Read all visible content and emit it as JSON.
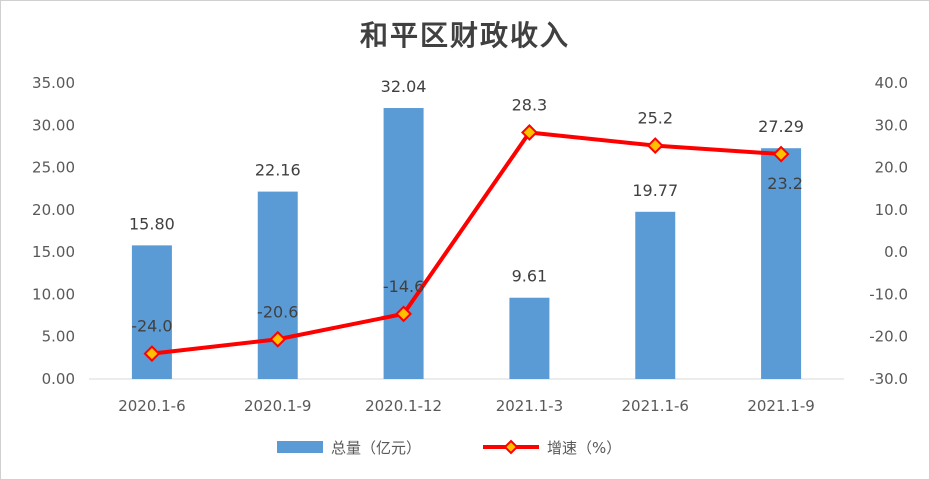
{
  "chart_data": {
    "type": "bar+line",
    "title": "和平区财政收入",
    "categories": [
      "2020.1-6",
      "2020.1-9",
      "2020.1-12",
      "2021.1-3",
      "2021.1-6",
      "2021.1-9"
    ],
    "series": [
      {
        "name": "总量（亿元）",
        "type": "bar",
        "axis": "left",
        "values": [
          15.8,
          22.16,
          32.04,
          9.61,
          19.77,
          27.29
        ],
        "labels": [
          "15.80",
          "22.16",
          "32.04",
          "9.61",
          "19.77",
          "27.29"
        ],
        "color": "#5b9bd5"
      },
      {
        "name": "增速（%）",
        "type": "line",
        "axis": "right",
        "values": [
          -24.0,
          -20.6,
          -14.6,
          28.3,
          25.2,
          23.2
        ],
        "labels": [
          "-24.0",
          "-20.6",
          "-14.6",
          "28.3",
          "25.2",
          "23.2"
        ],
        "color": "#ff0000",
        "marker_color": "#ffc000"
      }
    ],
    "y_left": {
      "min": 0,
      "max": 35,
      "ticks": [
        "0.00",
        "5.00",
        "10.00",
        "15.00",
        "20.00",
        "25.00",
        "30.00",
        "35.00"
      ]
    },
    "y_right": {
      "min": -30,
      "max": 40,
      "ticks": [
        "-30.0",
        "-20.0",
        "-10.0",
        "0.0",
        "10.0",
        "20.0",
        "30.0",
        "40.0"
      ]
    },
    "grid": false,
    "legend_position": "bottom"
  }
}
